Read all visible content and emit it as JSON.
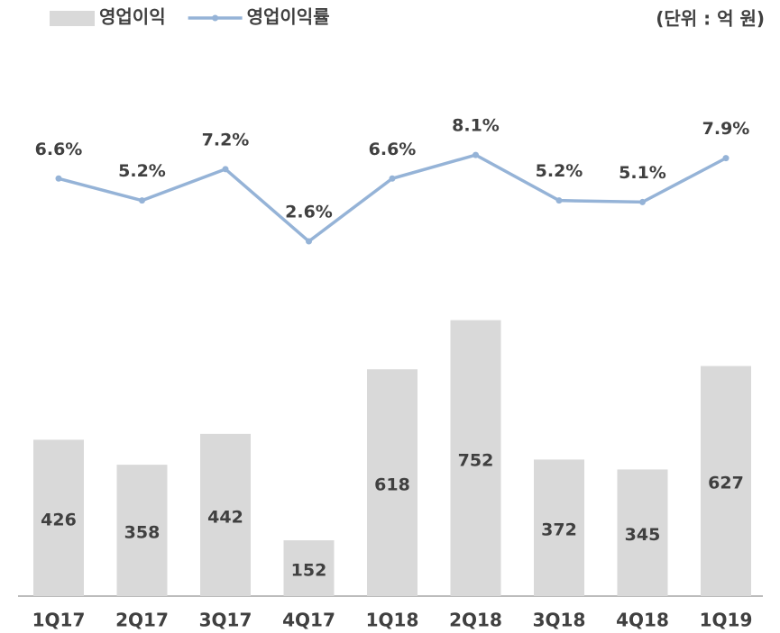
{
  "chart_data": {
    "type": "combo",
    "note": "(단위 : 억 원)",
    "categories": [
      "1Q17",
      "2Q17",
      "3Q17",
      "4Q17",
      "1Q18",
      "2Q18",
      "3Q18",
      "4Q18",
      "1Q19"
    ],
    "series": [
      {
        "name": "영업이익",
        "type": "bar",
        "color": "#d9d9d9",
        "values": [
          426,
          358,
          442,
          152,
          618,
          752,
          372,
          345,
          627
        ]
      },
      {
        "name": "영업이익률",
        "type": "line",
        "axis": "y2",
        "color": "#95b3d7",
        "values": [
          6.6,
          5.2,
          7.2,
          2.6,
          6.6,
          8.1,
          5.2,
          5.1,
          7.9
        ],
        "value_labels": [
          "6.6%",
          "5.2%",
          "7.2%",
          "2.6%",
          "6.6%",
          "8.1%",
          "5.2%",
          "5.1%",
          "7.9%"
        ]
      }
    ],
    "ylim": [
      0,
      1600
    ],
    "y2lim": [
      -20,
      17.4
    ],
    "grid": false,
    "legend": "top-left"
  }
}
